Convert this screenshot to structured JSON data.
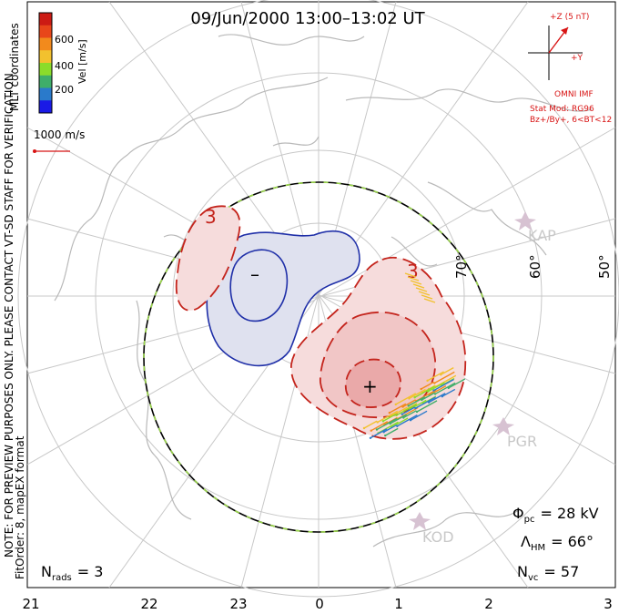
{
  "title": "09/Jun/2000 13:00–13:02 UT",
  "colorbar": {
    "unit_label": "Vel [m/s]",
    "ticks": [
      "600",
      "400",
      "200"
    ],
    "colors": [
      "#1a1ae6",
      "#2a7acb",
      "#3fae6a",
      "#8bdc2a",
      "#f2c12e",
      "#f28a1c",
      "#e8461a",
      "#cc1b14"
    ]
  },
  "coord_label": "MLT coordinates",
  "vector_scale_label": "1000 m/s",
  "notes": {
    "line1": "NOTE: FOR PREVIEW PURPOSES ONLY. PLEASE CONTACT VT-SD STAFF FOR VERIFICATION.",
    "line2": "FitOrder: 8, mapEX format"
  },
  "imf": {
    "z_label": "+Z (5 nT)",
    "y_label": "+Y",
    "source": "OMNI IMF",
    "stat_mod": "Stat Mod: RG96",
    "condition": "Bz+/By+, 6<BT<12",
    "color": "#d81414"
  },
  "contours": {
    "pos_label": "3",
    "pos_label_2": "3",
    "max_marker": "+",
    "min_marker": "–",
    "pos_color": "#c4241c",
    "neg_color": "#1f2fa8"
  },
  "latitude_labels": [
    "70°",
    "60°",
    "50°"
  ],
  "stations": [
    "KAP",
    "PGR",
    "KOD"
  ],
  "stats": {
    "phi_symbol": "Φ",
    "phi_sub": "pc",
    "phi_value": "= 28 kV",
    "lambda_symbol": "Λ",
    "lambda_sub": "HM",
    "lambda_value": "= 66°",
    "n_symbol": "N",
    "nvc_sub": "vc",
    "nvc_value": "= 57",
    "nrads_sub": "rads",
    "nrads_value": "= 3"
  },
  "mlt_ticks": [
    "21",
    "22",
    "23",
    "0",
    "1",
    "2",
    "3"
  ]
}
